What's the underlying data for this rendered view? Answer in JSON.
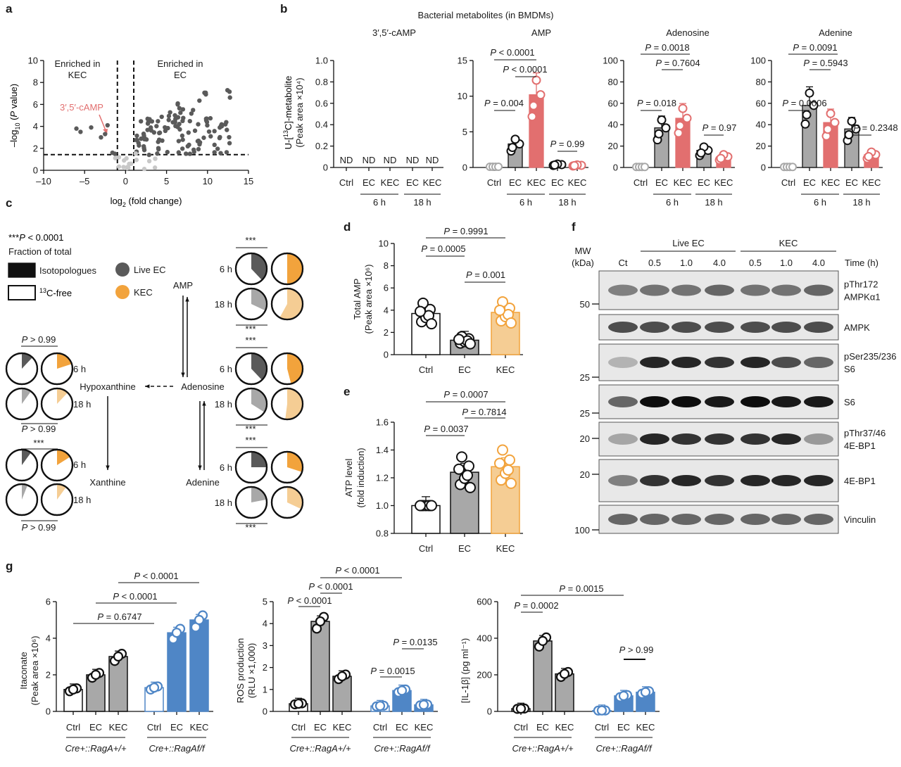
{
  "colors": {
    "grey": "#a8a8a8",
    "darkgrey": "#5a5a5a",
    "red": "#e26f6f",
    "redlight": "#f28b8b",
    "orange": "#f2a33c",
    "orangelight": "#f5cd94",
    "blue": "#4f86c6",
    "lightgrey": "#c8c8c8",
    "black": "#111111"
  },
  "panels": {
    "a": "a",
    "b": "b",
    "c": "c",
    "d": "d",
    "e": "e",
    "f": "f",
    "g": "g"
  },
  "panel_a": {
    "xlabel_pre": "log",
    "xlabel_sub": "2",
    "xlabel_post": " (fold change)",
    "ylabel_pre": "–log",
    "ylabel_sub": "10",
    "ylabel_post": " (P value)",
    "xticks": [
      "–10",
      "–5",
      "0",
      "5",
      "10",
      "15"
    ],
    "yticks": [
      "0",
      "2",
      "4",
      "6",
      "8",
      "10"
    ],
    "left_label_1": "Enriched in",
    "left_label_2": "KEC",
    "right_label_1": "Enriched in",
    "right_label_2": "EC",
    "annotation": "3′,5′-cAMP"
  },
  "panel_b": {
    "title": "Bacterial metabolites (in BMDMs)",
    "ylabel_1": "U-[13C]-metabolite",
    "ylabel_2": "(Peak area ×10⁴)",
    "categories": [
      "Ctrl",
      "EC",
      "KEC",
      "EC",
      "KEC"
    ],
    "time_6": "6 h",
    "time_18": "18 h",
    "subplots": [
      {
        "title": "3′,5′-cAMP",
        "yticks": [
          "0",
          "0.2",
          "0.4",
          "0.6",
          "0.8",
          "1.0"
        ],
        "nd": "ND",
        "values": []
      },
      {
        "title": "AMP",
        "yticks": [
          "0",
          "5",
          "10",
          "15"
        ],
        "values": [
          0.1,
          3.3,
          10.2,
          0.4,
          0.3
        ],
        "pvals": [
          "P < 0.0001",
          "P < 0.0001",
          "P = 0.004",
          "P = 0.99"
        ]
      },
      {
        "title": "Adenosine",
        "yticks": [
          "0",
          "20",
          "40",
          "60",
          "80",
          "100"
        ],
        "values": [
          0.5,
          37,
          46,
          16,
          10
        ],
        "pvals": [
          "P = 0.0018",
          "P = 0.7604",
          "P = 0.018",
          "P = 0.97"
        ]
      },
      {
        "title": "Adenine",
        "yticks": [
          "0",
          "20",
          "40",
          "60",
          "80",
          "100"
        ],
        "values": [
          0.5,
          58,
          42,
          36,
          12
        ],
        "pvals": [
          "P = 0.0091",
          "P = 0.5943",
          "P = 0.0006",
          "P = 0.2348"
        ]
      }
    ]
  },
  "panel_c": {
    "sig_legend": "***P < 0.0001",
    "fraction_title": "Fraction of total",
    "legend_iso": "Isotopologues",
    "legend_free": "13C-free",
    "legend_live": "Live EC",
    "legend_kec": "KEC",
    "t6": "6 h",
    "t18": "18 h",
    "stars": "***",
    "p_hypo_top": "P > 0.99",
    "p_hypo_bottom": "P > 0.99",
    "p_xan_bottom": "P > 0.99",
    "node_amp": "AMP",
    "node_adenosine": "Adenosine",
    "node_adenine": "Adenine",
    "node_hypoxanthine": "Hypoxanthine",
    "node_xanthine": "Xanthine"
  },
  "panel_d": {
    "ylabel_1": "Total AMP",
    "ylabel_2": "(Peak area ×10⁶)",
    "yticks": [
      "0",
      "2",
      "4",
      "6",
      "8",
      "10"
    ],
    "categories": [
      "Ctrl",
      "EC",
      "KEC"
    ],
    "values": [
      3.7,
      1.3,
      3.8
    ],
    "pvals": [
      "P = 0.9991",
      "P = 0.0005",
      "P = 0.001"
    ]
  },
  "panel_e": {
    "ylabel_1": "ATP level",
    "ylabel_2": "(fold induction)",
    "yticks": [
      "0.8",
      "1.0",
      "1.2",
      "1.4",
      "1.6"
    ],
    "categories": [
      "Ctrl",
      "EC",
      "KEC"
    ],
    "values": [
      1.0,
      1.24,
      1.28
    ],
    "pvals": [
      "P = 0.0007",
      "P = 0.0037",
      "P = 0.7814"
    ]
  },
  "panel_f": {
    "mw": "MW",
    "kda": "(kDa)",
    "ct": "Ct",
    "live_ec": "Live EC",
    "kec": "KEC",
    "time": "Time (h)",
    "times": [
      "0.5",
      "1.0",
      "4.0",
      "0.5",
      "1.0",
      "4.0"
    ],
    "mw_marks": [
      "50",
      "25",
      "25",
      "20",
      "20",
      "100"
    ],
    "blots": [
      {
        "label_1": "pThr172",
        "label_2": "AMPKα1"
      },
      {
        "label_1": "AMPK",
        "label_2": ""
      },
      {
        "label_1": "pSer235/236",
        "label_2": "S6"
      },
      {
        "label_1": "S6",
        "label_2": ""
      },
      {
        "label_1": "pThr37/46",
        "label_2": "4E-BP1"
      },
      {
        "label_1": "4E-BP1",
        "label_2": ""
      },
      {
        "label_1": "Vinculin",
        "label_2": ""
      }
    ]
  },
  "panel_g": {
    "categories": [
      "Ctrl",
      "EC",
      "KEC",
      "Ctrl",
      "EC",
      "KEC"
    ],
    "group_wt": "Cre+::RagA+/+",
    "group_ko": "Cre+::RagAf/f",
    "subplots": [
      {
        "ylabel_1": "Itaconate",
        "ylabel_2": "(Peak area ×10⁶)",
        "yticks": [
          "0",
          "2",
          "4",
          "6"
        ],
        "values": [
          1.2,
          2.0,
          3.0,
          1.3,
          4.3,
          5.0
        ],
        "pvals": [
          "P < 0.0001",
          "P < 0.0001",
          "P = 0.6747"
        ]
      },
      {
        "ylabel_1": "ROS production",
        "ylabel_2": "(RLU ×1,000)",
        "yticks": [
          "0",
          "1",
          "2",
          "3",
          "4",
          "5"
        ],
        "values": [
          0.35,
          4.1,
          1.6,
          0.25,
          0.95,
          0.3
        ],
        "pvals": [
          "P < 0.0001",
          "P < 0.0001",
          "P < 0.0001",
          "P = 0.0135",
          "P = 0.0015"
        ]
      },
      {
        "ylabel_1": "[IL-1β] (pg ml⁻¹)",
        "ylabel_2": "",
        "yticks": [
          "0",
          "200",
          "400",
          "600"
        ],
        "values": [
          15,
          385,
          205,
          5,
          85,
          105
        ],
        "pvals": [
          "P = 0.0015",
          "P = 0.0002",
          "P > 0.99"
        ]
      }
    ]
  }
}
